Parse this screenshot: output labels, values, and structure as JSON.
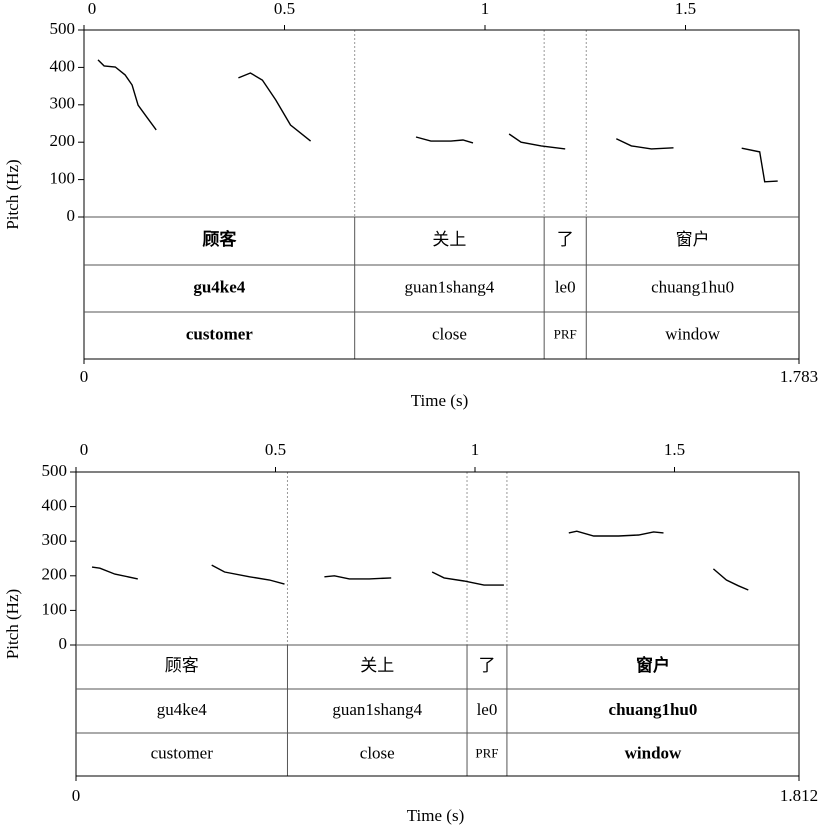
{
  "chart_data": [
    {
      "type": "line",
      "x_label": "Time (s)",
      "y_label": "Pitch (Hz)",
      "xlim": [
        0,
        1.783
      ],
      "xticks": [
        0,
        0.5,
        1,
        1.5
      ],
      "ylim": [
        0,
        500
      ],
      "yticks": [
        0,
        100,
        200,
        300,
        400,
        500
      ],
      "series": [
        {
          "color": "#000000",
          "x": [
            0.035,
            0.05,
            0.078,
            0.1025,
            0.12,
            0.135,
            0.158,
            0.18,
            null,
            0.385,
            0.415,
            0.445,
            0.478,
            0.515,
            0.565,
            null,
            0.828,
            0.865,
            0.915,
            0.945,
            0.97,
            null,
            1.06,
            1.09,
            1.14,
            1.2,
            null,
            1.3275,
            1.365,
            1.415,
            1.47,
            null,
            1.64,
            1.685,
            1.6975,
            1.73
          ],
          "values": [
            420,
            404,
            401,
            380,
            353,
            299,
            265,
            233,
            null,
            372,
            385,
            366,
            313,
            246,
            203,
            null,
            214,
            203,
            203,
            206,
            198,
            null,
            222,
            200,
            190,
            182,
            null,
            209,
            190,
            182,
            185,
            null,
            184,
            174,
            94,
            96
          ]
        }
      ],
      "boundaries": [
        0.675,
        1.1475,
        1.2525
      ],
      "bold_interval": 0,
      "tiers": [
        {
          "labels": [
            "顾客",
            "关上",
            "了",
            "窗户"
          ]
        },
        {
          "labels": [
            "gu4ke4",
            "guan1shang4",
            "le0",
            "chuang1hu0"
          ]
        },
        {
          "labels": [
            "customer",
            "close",
            "PRF",
            "window"
          ]
        }
      ]
    },
    {
      "type": "line",
      "x_label": "Time (s)",
      "y_label": "Pitch (Hz)",
      "xlim": [
        0,
        1.812
      ],
      "xticks": [
        0,
        0.5,
        1,
        1.5
      ],
      "ylim": [
        0,
        500
      ],
      "yticks": [
        0,
        100,
        200,
        300,
        400,
        500
      ],
      "series": [
        {
          "color": "#000000",
          "x": [
            0.04,
            0.06,
            0.0975,
            0.155,
            null,
            0.34,
            0.3725,
            0.435,
            0.485,
            0.5225,
            null,
            0.6225,
            0.6475,
            0.685,
            0.735,
            0.79,
            null,
            0.8925,
            0.9225,
            0.9725,
            1.0225,
            1.0725,
            null,
            1.235,
            1.255,
            1.2975,
            1.36,
            1.41,
            1.4475,
            1.4725,
            null,
            1.5975,
            1.63,
            1.66,
            1.685
          ],
          "values": [
            225,
            222,
            205,
            191,
            null,
            231,
            211,
            197,
            188,
            176,
            null,
            197,
            200,
            191,
            191,
            194,
            null,
            211,
            194,
            185,
            173,
            173,
            null,
            324,
            329,
            315,
            315,
            318,
            327,
            324,
            null,
            220,
            188,
            171,
            159
          ]
        }
      ],
      "boundaries": [
        0.53,
        0.98,
        1.08
      ],
      "bold_interval": 3,
      "tiers": [
        {
          "labels": [
            "顾客",
            "关上",
            "了",
            "窗户"
          ]
        },
        {
          "labels": [
            "gu4ke4",
            "guan1shang4",
            "le0",
            "chuang1hu0"
          ]
        },
        {
          "labels": [
            "customer",
            "close",
            "PRF",
            "window"
          ]
        }
      ]
    }
  ]
}
